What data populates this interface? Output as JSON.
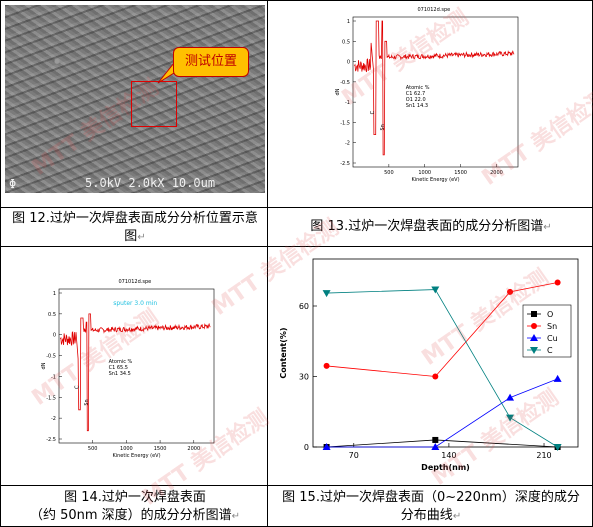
{
  "sem_image": {
    "callout": "测试位置",
    "scale_bar_text": "5.0kV  2.0kX   10.0um"
  },
  "spectrum1": {
    "title": "071012d.spe",
    "x_label": "Kinetic Energy (eV)",
    "y_label": "dN",
    "x_ticks": [
      "500",
      "1000",
      "1500",
      "2000"
    ],
    "y_ticks": [
      "1",
      "0.5",
      "0",
      "-0.5",
      "-1",
      "-1.5",
      "-2",
      "-2.5"
    ],
    "peak_labels": [
      "C",
      "Sn"
    ],
    "legend_title": "Atomic %",
    "legend_lines": [
      "C1   62.7",
      "O1   22.0",
      "Sn1  14.3"
    ]
  },
  "spectrum2": {
    "title": "071012d.spe",
    "annotation": "sputer 3.0 min",
    "x_label": "Kinetic Energy (eV)",
    "y_label": "dN",
    "x_ticks": [
      "500",
      "1000",
      "1500",
      "2000"
    ],
    "y_ticks": [
      "1",
      "0.5",
      "0",
      "-0.5",
      "-1",
      "-1.5",
      "-2",
      "-2.5"
    ],
    "peak_labels": [
      "C",
      "Sn"
    ],
    "legend_title": "Atomic %",
    "legend_lines": [
      "C1   65.5",
      "Sn1  34.5"
    ]
  },
  "captions": {
    "fig12": "图 12.过炉一次焊盘表面成分分析位置示意图",
    "fig13": "图 13.过炉一次焊盘表面的成分分析图谱",
    "fig14_line1": "图 14.过炉一次焊盘表面",
    "fig14_line2": "（约 50nm 深度）的成分分析图谱",
    "fig15_line1": "图 15.过炉一次焊盘表面（0~220nm）深度的成分",
    "fig15_line2": "分布曲线"
  },
  "watermark": "MTT 美信检测",
  "chart_data": {
    "type": "line",
    "xlabel": "Depth(nm)",
    "ylabel": "Content(%)",
    "x_ticks": [
      70,
      140,
      210
    ],
    "y_ticks": [
      0,
      30,
      60
    ],
    "xlim": [
      40,
      235
    ],
    "ylim": [
      0,
      80
    ],
    "x": [
      50,
      130,
      185,
      220
    ],
    "series": [
      {
        "name": "O",
        "color": "#000000",
        "marker": "square",
        "values": [
          0,
          3,
          null,
          0
        ]
      },
      {
        "name": "Sn",
        "color": "#ff0000",
        "marker": "circle",
        "values": [
          34.5,
          30,
          66,
          70
        ]
      },
      {
        "name": "Cu",
        "color": "#0000ff",
        "marker": "triangle",
        "values": [
          0,
          0,
          21,
          29
        ]
      },
      {
        "name": "C",
        "color": "#008080",
        "marker": "tri-down",
        "values": [
          65.5,
          67,
          12.5,
          0
        ]
      }
    ],
    "legend_position": "right"
  }
}
